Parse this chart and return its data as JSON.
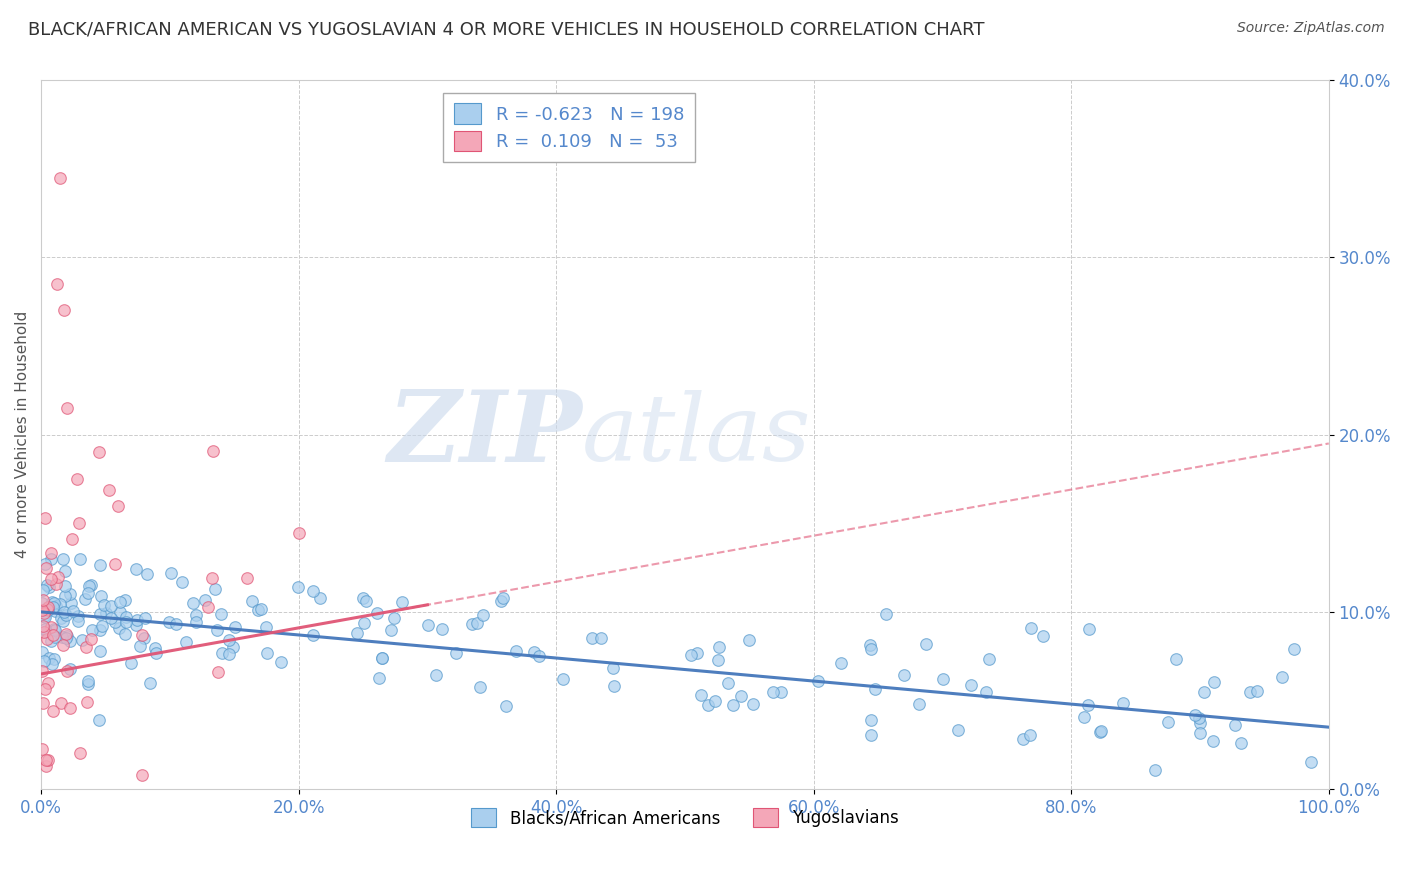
{
  "title": "BLACK/AFRICAN AMERICAN VS YUGOSLAVIAN 4 OR MORE VEHICLES IN HOUSEHOLD CORRELATION CHART",
  "source": "Source: ZipAtlas.com",
  "ylabel": "4 or more Vehicles in Household",
  "blue_R": -0.623,
  "blue_N": 198,
  "pink_R": 0.109,
  "pink_N": 53,
  "blue_color": "#aacfee",
  "pink_color": "#f4a7b8",
  "blue_edge_color": "#5599cc",
  "pink_edge_color": "#e05575",
  "blue_line_color": "#4477bb",
  "pink_line_color": "#e05575",
  "xlim": [
    0.0,
    100.0
  ],
  "ylim": [
    0.0,
    40.0
  ],
  "xticks": [
    0.0,
    20.0,
    40.0,
    60.0,
    80.0,
    100.0
  ],
  "yticks": [
    0.0,
    10.0,
    20.0,
    30.0,
    40.0
  ],
  "xtick_labels": [
    "0.0%",
    "20.0%",
    "40.0%",
    "60.0%",
    "80.0%",
    "100.0%"
  ],
  "ytick_labels": [
    "0.0%",
    "10.0%",
    "20.0%",
    "30.0%",
    "40.0%"
  ],
  "watermark_zip": "ZIP",
  "watermark_atlas": "atlas",
  "watermark_color": "#c8d8ec",
  "legend_labels": [
    "Blacks/African Americans",
    "Yugoslavians"
  ],
  "background_color": "#ffffff",
  "grid_color": "#cccccc",
  "title_color": "#333333",
  "tick_color": "#5588cc",
  "title_fontsize": 13,
  "axis_fontsize": 11,
  "tick_fontsize": 12,
  "source_fontsize": 10,
  "legend_fontsize": 13
}
